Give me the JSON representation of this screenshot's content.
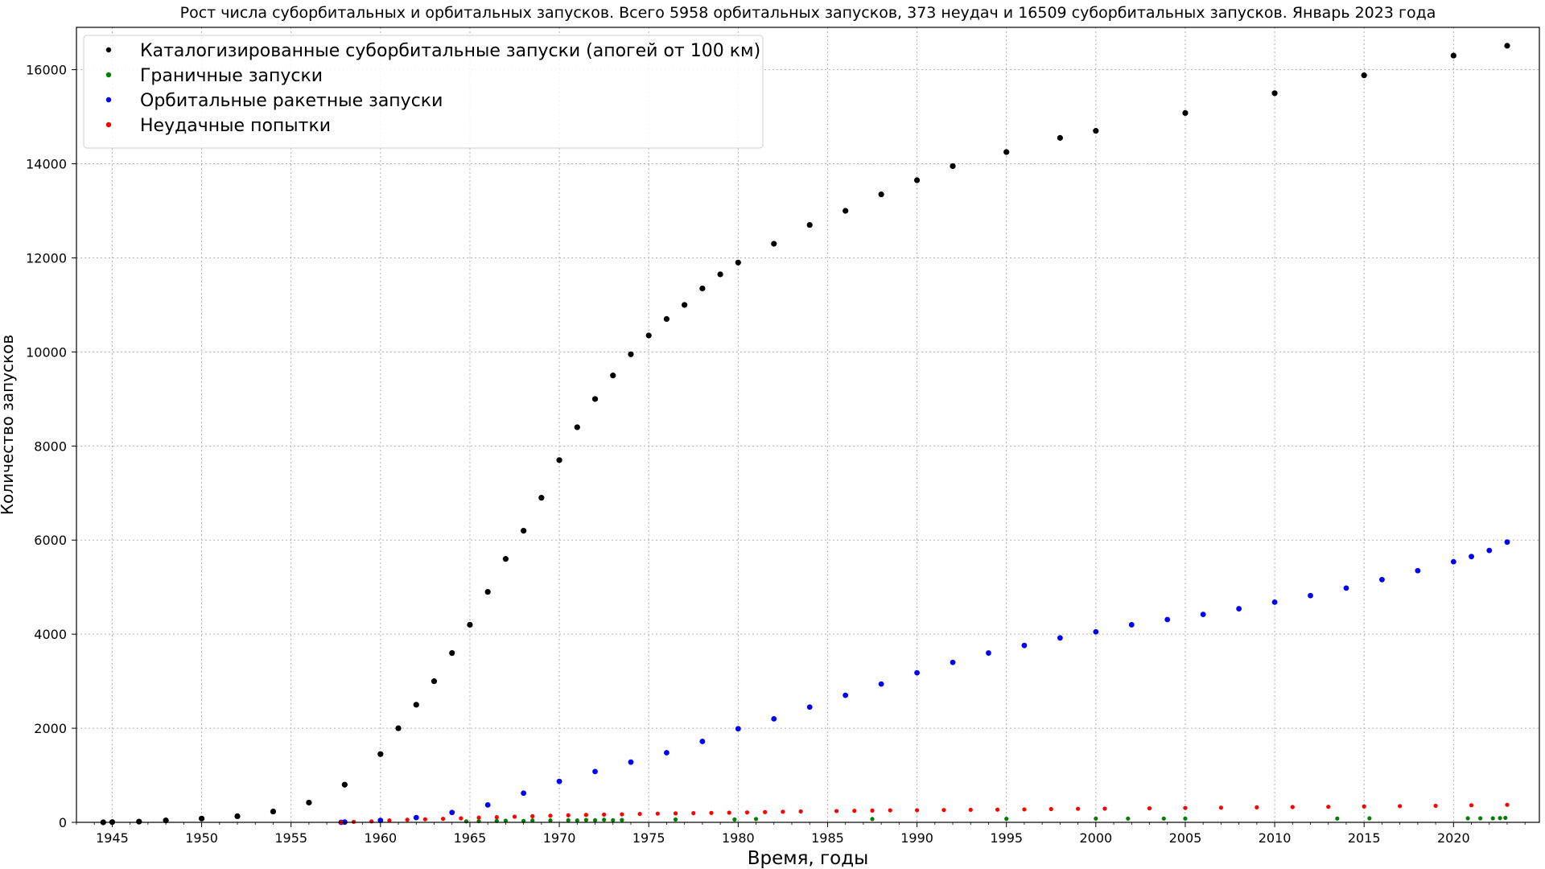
{
  "chart_data": {
    "type": "scatter",
    "title": "Рост числа суборбитальных и орбитальных запусков. Всего 5958 орбитальных запусков, 373 неудач и 16509 суборбитальных запусков. Январь 2023 года",
    "xlabel": "Время, годы",
    "ylabel": "Количество запусков",
    "xlim": [
      1943,
      2024.8
    ],
    "ylim": [
      0,
      16900
    ],
    "xticks": [
      "1945",
      "1950",
      "1955",
      "1960",
      "1965",
      "1970",
      "1975",
      "1980",
      "1985",
      "1990",
      "1995",
      "2000",
      "2005",
      "2010",
      "2015",
      "2020"
    ],
    "yticks": [
      "0",
      "2000",
      "4000",
      "6000",
      "8000",
      "10000",
      "12000",
      "14000",
      "16000"
    ],
    "grid": true,
    "legend_position": "top-left",
    "series": [
      {
        "name": "Каталогизированные суборбитальные запуски (апогей от 100 км)",
        "color": "#000000",
        "x": [
          1944.5,
          1945,
          1946.5,
          1948,
          1950,
          1952,
          1954,
          1956,
          1958,
          1960,
          1961,
          1962,
          1963,
          1964,
          1965,
          1966,
          1967,
          1968,
          1969,
          1970,
          1971,
          1972,
          1973,
          1974,
          1975,
          1976,
          1977,
          1978,
          1979,
          1980,
          1982,
          1984,
          1986,
          1988,
          1990,
          1992,
          1995,
          1998,
          2000,
          2005,
          2010,
          2015,
          2020,
          2023
        ],
        "y": [
          0,
          5,
          15,
          40,
          80,
          130,
          230,
          420,
          800,
          1450,
          2000,
          2500,
          3000,
          3600,
          4200,
          4900,
          5600,
          6200,
          6900,
          7700,
          8400,
          9000,
          9500,
          9950,
          10350,
          10700,
          11000,
          11350,
          11650,
          11900,
          12300,
          12700,
          13000,
          13350,
          13650,
          13950,
          14250,
          14550,
          14700,
          15080,
          15500,
          15880,
          16300,
          16509
        ]
      },
      {
        "name": "Граничные запуски",
        "color": "#008000",
        "x": [
          1964.8,
          1965.5,
          1966.5,
          1967,
          1968,
          1968.5,
          1969.5,
          1970.5,
          1971,
          1971.5,
          1972,
          1972.5,
          1973,
          1973.5,
          1976.5,
          1979.8,
          1981,
          1987.5,
          1995,
          2000,
          2001.8,
          2003.8,
          2005,
          2013.5,
          2015.3,
          2020.8,
          2021.5,
          2022.2,
          2022.6,
          2022.9
        ],
        "y": [
          20,
          25,
          30,
          35,
          30,
          40,
          40,
          45,
          40,
          50,
          45,
          55,
          45,
          50,
          60,
          60,
          70,
          70,
          75,
          80,
          80,
          80,
          80,
          80,
          85,
          85,
          85,
          85,
          90,
          95
        ]
      },
      {
        "name": "Орбитальные ракетные запуски",
        "color": "#0000ff",
        "x": [
          1957.8,
          1958,
          1960,
          1962,
          1964,
          1966,
          1968,
          1970,
          1972,
          1974,
          1976,
          1978,
          1980,
          1982,
          1984,
          1986,
          1988,
          1990,
          1992,
          1994,
          1996,
          1998,
          2000,
          2002,
          2004,
          2006,
          2008,
          2010,
          2012,
          2014,
          2016,
          2018,
          2020,
          2021,
          2022,
          2023
        ],
        "y": [
          0,
          5,
          40,
          100,
          210,
          370,
          620,
          870,
          1080,
          1280,
          1480,
          1720,
          1990,
          2200,
          2450,
          2700,
          2940,
          3180,
          3400,
          3600,
          3760,
          3920,
          4050,
          4200,
          4310,
          4420,
          4540,
          4680,
          4820,
          4980,
          5160,
          5350,
          5540,
          5650,
          5780,
          5958
        ]
      },
      {
        "name": "Неудачные попытки",
        "color": "#ff0000",
        "x": [
          1957.8,
          1958.5,
          1959.5,
          1960.5,
          1961.5,
          1962.5,
          1963.5,
          1964.5,
          1965.5,
          1966.5,
          1967.5,
          1968.5,
          1969.5,
          1970.5,
          1971.5,
          1972.5,
          1973.5,
          1974.5,
          1975.5,
          1976.5,
          1977.5,
          1978.5,
          1979.5,
          1980.5,
          1981.5,
          1982.5,
          1983.5,
          1985.5,
          1986.5,
          1987.5,
          1988.5,
          1990,
          1991.5,
          1993,
          1994.5,
          1996,
          1997.5,
          1999,
          2000.5,
          2003,
          2005,
          2007,
          2009,
          2011,
          2013,
          2015,
          2017,
          2019,
          2021,
          2023
        ],
        "y": [
          0,
          10,
          20,
          40,
          55,
          65,
          75,
          85,
          100,
          110,
          120,
          130,
          140,
          150,
          158,
          165,
          170,
          178,
          185,
          190,
          195,
          200,
          205,
          210,
          218,
          225,
          232,
          240,
          245,
          250,
          255,
          258,
          262,
          266,
          270,
          275,
          282,
          288,
          292,
          298,
          305,
          312,
          318,
          325,
          330,
          338,
          345,
          352,
          362,
          373
        ]
      }
    ]
  }
}
